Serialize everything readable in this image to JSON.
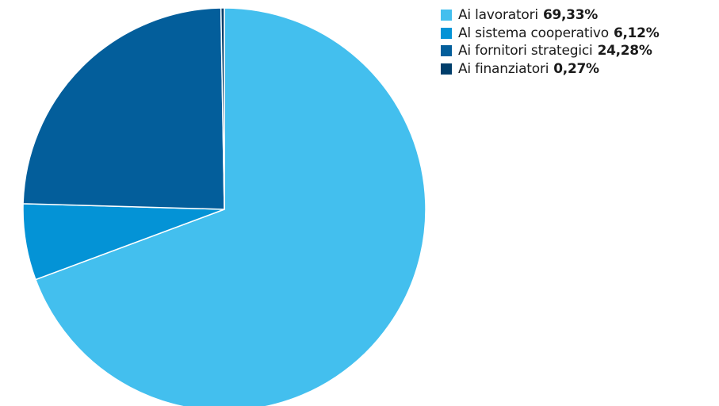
{
  "chart_data": {
    "type": "pie",
    "slices": [
      {
        "label": "Ai lavoratori",
        "value": 69.33,
        "value_label": "69,33%",
        "color": "#43BFEE"
      },
      {
        "label": "Al sistema cooperativo",
        "value": 6.12,
        "value_label": "6,12%",
        "color": "#0493D6"
      },
      {
        "label": "Ai fornitori strategici",
        "value": 24.28,
        "value_label": "24,28%",
        "color": "#035E9B"
      },
      {
        "label": "Ai finanziatori",
        "value": 0.27,
        "value_label": "0,27%",
        "color": "#003E6B"
      }
    ],
    "start_direction": "top",
    "direction": "clockwise",
    "legend_position": "top-right"
  }
}
